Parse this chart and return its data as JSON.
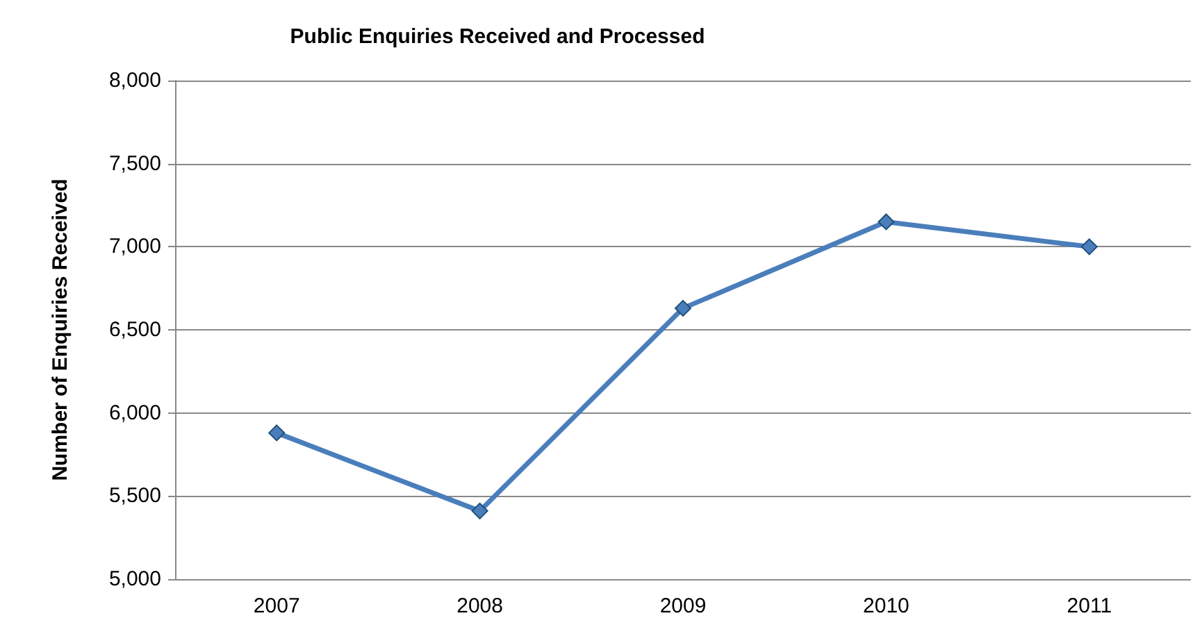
{
  "chart_data": {
    "type": "line",
    "title": "Public Enquiries Received and Processed",
    "ylabel": "Number of Enquiries Received",
    "categories": [
      "2007",
      "2008",
      "2009",
      "2010",
      "2011"
    ],
    "series": [
      {
        "color": "#4a7ebb",
        "values": [
          5880,
          5410,
          6630,
          7150,
          7000
        ]
      }
    ],
    "ylim": [
      5000,
      8000
    ],
    "yticks": [
      {
        "value": 5000,
        "label": "5,000"
      },
      {
        "value": 5500,
        "label": "5,500"
      },
      {
        "value": 6000,
        "label": "6,000"
      },
      {
        "value": 6500,
        "label": "6,500"
      },
      {
        "value": 7000,
        "label": "7,000"
      },
      {
        "value": 7500,
        "label": "7,500"
      },
      {
        "value": 8000,
        "label": "8,000"
      }
    ],
    "grid": "y",
    "marker": "diamond",
    "line_style": "solid"
  }
}
